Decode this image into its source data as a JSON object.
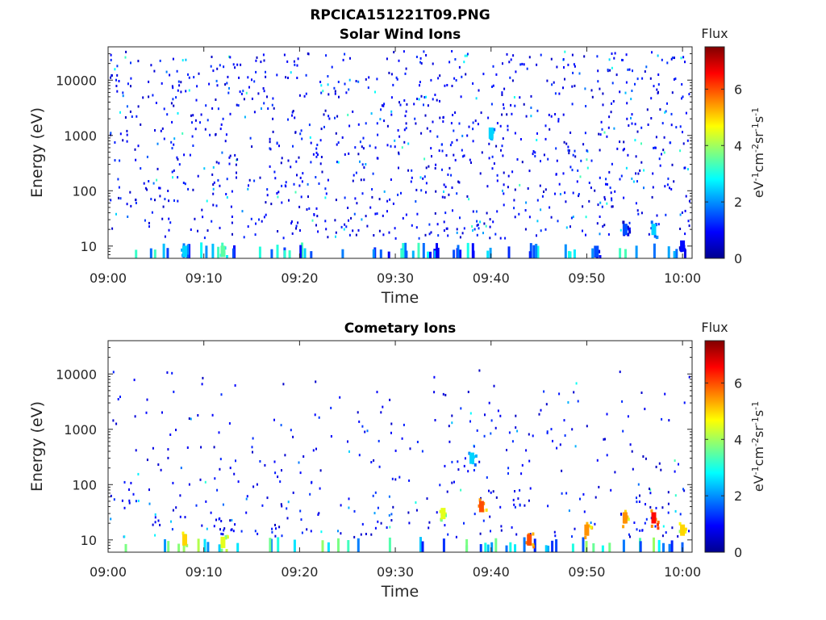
{
  "figure": {
    "title": "RPCICA151221T09.PNG"
  },
  "chart_data": [
    {
      "type": "heatmap",
      "title": "Solar Wind Ions",
      "xlabel": "Time",
      "ylabel": "Energy (eV)",
      "x_ticks": [
        "09:00",
        "09:10",
        "09:20",
        "09:30",
        "09:40",
        "09:50",
        "10:00"
      ],
      "x_range": [
        "09:00",
        "10:01"
      ],
      "y_ticks": [
        "10",
        "100",
        "1000",
        "10000"
      ],
      "y_scale": "log",
      "y_range": [
        6,
        40000
      ],
      "colorbar": {
        "title": "Flux",
        "label": "eV-1cm-2sr-1s-1",
        "ticks": [
          "0",
          "2",
          "4",
          "6"
        ],
        "range": [
          0,
          7.5
        ],
        "colormap": "jet"
      },
      "features": [
        {
          "time": "09:08",
          "energy": 8,
          "flux": 2.5
        },
        {
          "time": "09:12",
          "energy": 8,
          "flux": 3.5
        },
        {
          "time": "09:40",
          "energy": 1100,
          "flux": 2.5
        },
        {
          "time": "09:51",
          "energy": 8,
          "flux": 1.5
        },
        {
          "time": "09:54",
          "energy": 20,
          "flux": 1.5
        },
        {
          "time": "09:57",
          "energy": 20,
          "flux": 2.5
        },
        {
          "time": "10:00",
          "energy": 10,
          "flux": 1.0
        }
      ]
    },
    {
      "type": "heatmap",
      "title": "Cometary Ions",
      "xlabel": "Time",
      "ylabel": "Energy (eV)",
      "x_ticks": [
        "09:00",
        "09:10",
        "09:20",
        "09:30",
        "09:40",
        "09:50",
        "10:00"
      ],
      "x_range": [
        "09:00",
        "10:01"
      ],
      "y_ticks": [
        "10",
        "100",
        "1000",
        "10000"
      ],
      "y_scale": "log",
      "y_range": [
        6,
        40000
      ],
      "colorbar": {
        "title": "Flux",
        "label": "eV-1cm-2sr-1s-1",
        "ticks": [
          "0",
          "2",
          "4",
          "6"
        ],
        "range": [
          0,
          7.5
        ],
        "colormap": "jet"
      },
      "features": [
        {
          "time": "09:08",
          "energy": 10,
          "flux": 5.0
        },
        {
          "time": "09:12",
          "energy": 9,
          "flux": 4.5
        },
        {
          "time": "09:35",
          "energy": 30,
          "flux": 4.5
        },
        {
          "time": "09:38",
          "energy": 300,
          "flux": 2.5
        },
        {
          "time": "09:39",
          "energy": 40,
          "flux": 6.0
        },
        {
          "time": "09:44",
          "energy": 10,
          "flux": 6.0
        },
        {
          "time": "09:50",
          "energy": 15,
          "flux": 5.5
        },
        {
          "time": "09:54",
          "energy": 25,
          "flux": 5.5
        },
        {
          "time": "09:57",
          "energy": 25,
          "flux": 6.5
        },
        {
          "time": "10:00",
          "energy": 15,
          "flux": 5.0
        }
      ]
    }
  ]
}
